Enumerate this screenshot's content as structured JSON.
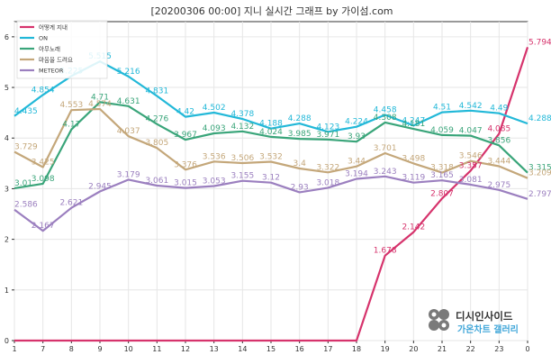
{
  "chart_data": {
    "type": "line",
    "title": "[20200306 00:00] 지니 실시간 그래프 by 가이섬.com",
    "xlabel": "",
    "ylabel": "",
    "categories": [
      "1",
      "7",
      "8",
      "9",
      "10",
      "11",
      "12",
      "13",
      "14",
      "15",
      "16",
      "17",
      "18",
      "19",
      "20",
      "21",
      "22",
      "23",
      "0"
    ],
    "ylim": [
      0,
      6.3
    ],
    "yticks": [
      0,
      1,
      2,
      3,
      4,
      5,
      6
    ],
    "grid": true,
    "legend_position": "top-left",
    "series": [
      {
        "name": "어떻게 지내",
        "color": "#d6336c",
        "values": [
          null,
          null,
          null,
          null,
          null,
          null,
          null,
          null,
          null,
          null,
          null,
          null,
          null,
          1.678,
          2.142,
          2.807,
          3.357,
          4.085,
          5.794
        ],
        "line_from_index": 12
      },
      {
        "name": "ON",
        "color": "#22b8d8",
        "values": [
          4.435,
          4.854,
          5.225,
          5.515,
          5.216,
          4.831,
          4.42,
          4.502,
          4.378,
          4.188,
          4.288,
          4.123,
          4.224,
          4.458,
          4.247,
          4.51,
          4.542,
          4.49,
          4.288
        ]
      },
      {
        "name": "아무노래",
        "color": "#3aa57a",
        "values": [
          3.01,
          3.098,
          4.17,
          4.71,
          4.631,
          4.276,
          3.967,
          4.093,
          4.132,
          4.024,
          3.985,
          3.971,
          3.93,
          4.308,
          4.181,
          4.059,
          4.047,
          3.856,
          3.315
        ]
      },
      {
        "name": "마음을 드려요",
        "color": "#c4a77a",
        "values": [
          3.729,
          3.425,
          4.553,
          4.574,
          4.037,
          3.805,
          3.376,
          3.536,
          3.506,
          3.532,
          3.4,
          3.322,
          3.44,
          3.701,
          3.498,
          3.318,
          3.546,
          3.444,
          3.209
        ]
      },
      {
        "name": "METEOR",
        "color": "#9b7fbf",
        "values": [
          2.586,
          2.167,
          2.621,
          2.945,
          3.179,
          3.061,
          3.015,
          3.053,
          3.155,
          3.12,
          2.93,
          3.018,
          3.194,
          3.243,
          3.119,
          3.165,
          3.081,
          2.975,
          2.797
        ]
      }
    ]
  },
  "watermark": {
    "top": "디시인사이드",
    "bottom": "가온차트 갤러리",
    "icon": "dcinside-logo-icon"
  }
}
